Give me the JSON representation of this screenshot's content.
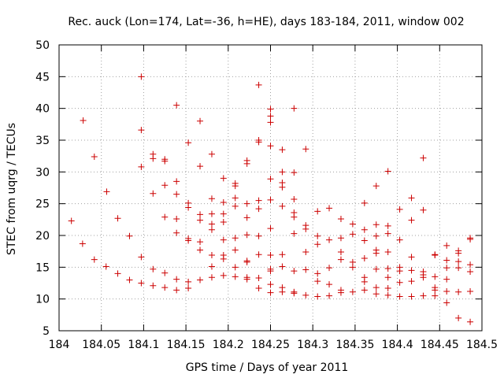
{
  "chart_data": {
    "type": "scatter",
    "title": "Rec. auck (Lon=174, Lat=-36, h=HE), days 183-184, 2011, window 002",
    "xlabel": "GPS time / Days of year 2011",
    "ylabel": "STEC from uqrg / TECUs",
    "xlim": [
      184,
      184.5
    ],
    "ylim": [
      5,
      50
    ],
    "grid": true,
    "marker": "+",
    "color": "#cc0000",
    "x_ticks": [
      "184",
      "184.05",
      "184.1",
      "184.15",
      "184.2",
      "184.25",
      "184.3",
      "184.35",
      "184.4",
      "184.45",
      "184.5"
    ],
    "y_ticks": [
      "5",
      "10",
      "15",
      "20",
      "25",
      "30",
      "35",
      "40",
      "45",
      "50"
    ],
    "series": [
      {
        "points": [
          [
            184.0146,
            22.3
          ],
          [
            184.0278,
            18.7
          ],
          [
            184.0285,
            38.1
          ],
          [
            184.0417,
            16.2
          ],
          [
            184.0417,
            32.4
          ],
          [
            184.0556,
            15.1
          ],
          [
            184.0563,
            26.9
          ],
          [
            184.0694,
            14.0
          ],
          [
            184.0694,
            22.7
          ],
          [
            184.0833,
            13.0
          ],
          [
            184.0833,
            19.9
          ],
          [
            184.0972,
            12.5
          ],
          [
            184.0972,
            16.6
          ],
          [
            184.0972,
            30.8
          ],
          [
            184.0972,
            36.6
          ],
          [
            184.0972,
            45.0
          ],
          [
            184.1111,
            12.1
          ],
          [
            184.1111,
            14.7
          ],
          [
            184.1111,
            26.6
          ],
          [
            184.1111,
            32.1
          ],
          [
            184.1111,
            32.8
          ],
          [
            184.125,
            11.8
          ],
          [
            184.125,
            14.1
          ],
          [
            184.125,
            22.9
          ],
          [
            184.125,
            27.9
          ],
          [
            184.125,
            31.7
          ],
          [
            184.125,
            32.0
          ],
          [
            184.1389,
            11.4
          ],
          [
            184.1389,
            13.1
          ],
          [
            184.1389,
            20.4
          ],
          [
            184.1389,
            22.6
          ],
          [
            184.1389,
            26.5
          ],
          [
            184.1389,
            28.5
          ],
          [
            184.1389,
            40.5
          ],
          [
            184.1528,
            11.7
          ],
          [
            184.1528,
            12.7
          ],
          [
            184.1528,
            19.2
          ],
          [
            184.1528,
            19.5
          ],
          [
            184.1528,
            24.4
          ],
          [
            184.1528,
            25.1
          ],
          [
            184.1528,
            34.6
          ],
          [
            184.1667,
            13.0
          ],
          [
            184.1667,
            17.7
          ],
          [
            184.1667,
            19.0
          ],
          [
            184.1667,
            22.4
          ],
          [
            184.1667,
            23.3
          ],
          [
            184.1667,
            30.9
          ],
          [
            184.1667,
            38.0
          ],
          [
            184.1806,
            13.4
          ],
          [
            184.1806,
            15.1
          ],
          [
            184.1806,
            16.9
          ],
          [
            184.1806,
            20.9
          ],
          [
            184.1806,
            21.8
          ],
          [
            184.1806,
            23.4
          ],
          [
            184.1806,
            25.8
          ],
          [
            184.1806,
            32.8
          ],
          [
            184.1944,
            13.7
          ],
          [
            184.1944,
            16.3
          ],
          [
            184.1944,
            16.9
          ],
          [
            184.1944,
            19.3
          ],
          [
            184.1944,
            22.1
          ],
          [
            184.1944,
            23.4
          ],
          [
            184.1944,
            25.2
          ],
          [
            184.1944,
            29.0
          ],
          [
            184.2083,
            13.5
          ],
          [
            184.2083,
            15.0
          ],
          [
            184.2083,
            17.7
          ],
          [
            184.2083,
            19.6
          ],
          [
            184.2083,
            24.6
          ],
          [
            184.2083,
            25.9
          ],
          [
            184.2083,
            27.8
          ],
          [
            184.2083,
            28.2
          ],
          [
            184.2222,
            13.1
          ],
          [
            184.2222,
            13.4
          ],
          [
            184.2222,
            15.8
          ],
          [
            184.2222,
            16.0
          ],
          [
            184.2222,
            20.1
          ],
          [
            184.2222,
            22.8
          ],
          [
            184.2222,
            25.0
          ],
          [
            184.2222,
            31.3
          ],
          [
            184.2222,
            31.8
          ],
          [
            184.2361,
            11.7
          ],
          [
            184.2361,
            13.3
          ],
          [
            184.2361,
            17.0
          ],
          [
            184.2361,
            19.9
          ],
          [
            184.2361,
            24.2
          ],
          [
            184.2361,
            25.5
          ],
          [
            184.2361,
            34.7
          ],
          [
            184.2361,
            35.0
          ],
          [
            184.2361,
            43.7
          ],
          [
            184.25,
            11.0
          ],
          [
            184.25,
            12.3
          ],
          [
            184.25,
            14.4
          ],
          [
            184.25,
            14.7
          ],
          [
            184.25,
            16.9
          ],
          [
            184.25,
            21.1
          ],
          [
            184.25,
            25.6
          ],
          [
            184.25,
            28.9
          ],
          [
            184.25,
            34.1
          ],
          [
            184.25,
            37.8
          ],
          [
            184.25,
            38.8
          ],
          [
            184.25,
            39.9
          ],
          [
            184.2639,
            11.1
          ],
          [
            184.2639,
            11.8
          ],
          [
            184.2639,
            15.1
          ],
          [
            184.2639,
            17.0
          ],
          [
            184.2639,
            24.6
          ],
          [
            184.2639,
            27.6
          ],
          [
            184.2639,
            28.3
          ],
          [
            184.2639,
            30.0
          ],
          [
            184.2639,
            33.5
          ],
          [
            184.2778,
            10.9
          ],
          [
            184.2778,
            11.1
          ],
          [
            184.2778,
            14.4
          ],
          [
            184.2778,
            20.3
          ],
          [
            184.2778,
            22.9
          ],
          [
            184.2778,
            23.6
          ],
          [
            184.2778,
            25.7
          ],
          [
            184.2778,
            29.9
          ],
          [
            184.2778,
            40.0
          ],
          [
            184.2917,
            10.6
          ],
          [
            184.2917,
            14.6
          ],
          [
            184.2917,
            17.4
          ],
          [
            184.2917,
            21.0
          ],
          [
            184.2917,
            21.6
          ],
          [
            184.2917,
            33.6
          ],
          [
            184.3056,
            10.4
          ],
          [
            184.3056,
            12.8
          ],
          [
            184.3056,
            14.0
          ],
          [
            184.3056,
            18.6
          ],
          [
            184.3056,
            19.9
          ],
          [
            184.3056,
            23.8
          ],
          [
            184.3194,
            10.5
          ],
          [
            184.3194,
            12.3
          ],
          [
            184.3194,
            14.9
          ],
          [
            184.3194,
            19.3
          ],
          [
            184.3194,
            24.3
          ],
          [
            184.3333,
            11.0
          ],
          [
            184.3333,
            11.4
          ],
          [
            184.3333,
            16.2
          ],
          [
            184.3333,
            17.4
          ],
          [
            184.3333,
            19.6
          ],
          [
            184.3333,
            22.6
          ],
          [
            184.3472,
            11.1
          ],
          [
            184.3472,
            15.0
          ],
          [
            184.3472,
            15.8
          ],
          [
            184.3472,
            20.2
          ],
          [
            184.3472,
            21.8
          ],
          [
            184.3611,
            11.4
          ],
          [
            184.3611,
            12.7
          ],
          [
            184.3611,
            13.4
          ],
          [
            184.3611,
            16.4
          ],
          [
            184.3611,
            19.2
          ],
          [
            184.3611,
            20.9
          ],
          [
            184.3611,
            25.1
          ],
          [
            184.375,
            10.8
          ],
          [
            184.375,
            11.8
          ],
          [
            184.375,
            14.7
          ],
          [
            184.375,
            17.2
          ],
          [
            184.375,
            17.7
          ],
          [
            184.375,
            19.9
          ],
          [
            184.375,
            21.7
          ],
          [
            184.375,
            27.8
          ],
          [
            184.3889,
            10.6
          ],
          [
            184.3889,
            11.7
          ],
          [
            184.3889,
            13.4
          ],
          [
            184.3889,
            14.8
          ],
          [
            184.3889,
            17.4
          ],
          [
            184.3889,
            20.3
          ],
          [
            184.3889,
            21.5
          ],
          [
            184.3889,
            30.1
          ],
          [
            184.4028,
            10.4
          ],
          [
            184.4028,
            12.6
          ],
          [
            184.4028,
            14.4
          ],
          [
            184.4028,
            15.0
          ],
          [
            184.4028,
            19.3
          ],
          [
            184.4028,
            24.1
          ],
          [
            184.4167,
            10.4
          ],
          [
            184.4167,
            12.8
          ],
          [
            184.4167,
            14.5
          ],
          [
            184.4167,
            16.6
          ],
          [
            184.4167,
            22.4
          ],
          [
            184.4167,
            25.9
          ],
          [
            184.4306,
            10.5
          ],
          [
            184.4306,
            13.4
          ],
          [
            184.4306,
            13.8
          ],
          [
            184.4306,
            14.3
          ],
          [
            184.4306,
            24.0
          ],
          [
            184.4306,
            32.2
          ],
          [
            184.4444,
            10.5
          ],
          [
            184.4444,
            11.4
          ],
          [
            184.4444,
            11.8
          ],
          [
            184.4444,
            13.5
          ],
          [
            184.4444,
            16.9
          ],
          [
            184.4444,
            17.0
          ],
          [
            184.4583,
            9.4
          ],
          [
            184.4583,
            11.2
          ],
          [
            184.4583,
            13.1
          ],
          [
            184.4583,
            14.9
          ],
          [
            184.4583,
            16.1
          ],
          [
            184.4583,
            18.4
          ],
          [
            184.4722,
            7.0
          ],
          [
            184.4722,
            11.1
          ],
          [
            184.4722,
            14.9
          ],
          [
            184.4722,
            15.9
          ],
          [
            184.4722,
            17.2
          ],
          [
            184.4722,
            17.6
          ],
          [
            184.4861,
            6.4
          ],
          [
            184.4861,
            11.2
          ],
          [
            184.4861,
            14.3
          ],
          [
            184.4861,
            15.4
          ],
          [
            184.4861,
            19.4
          ],
          [
            184.4861,
            19.6
          ]
        ]
      }
    ]
  }
}
